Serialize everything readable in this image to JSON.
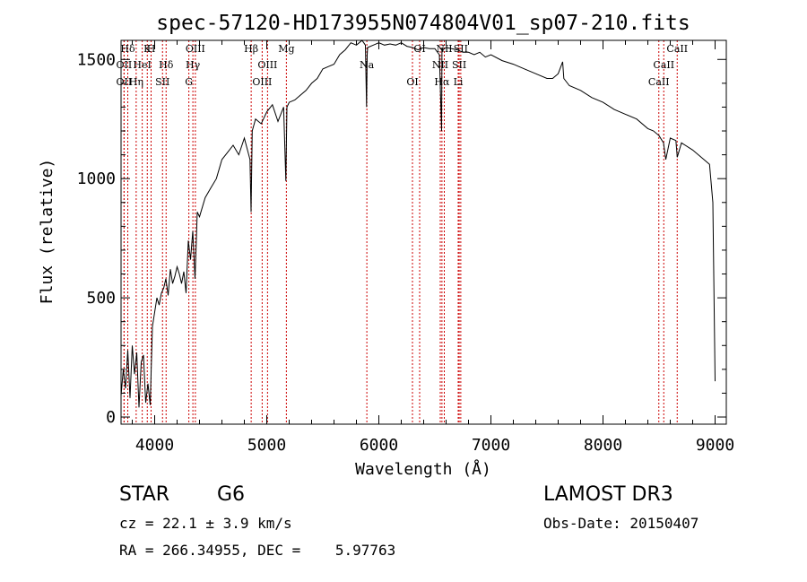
{
  "chart_data": {
    "type": "line",
    "title": "spec-57120-HD173955N074804V01_sp07-210.fits",
    "xlabel": "Wavelength (Å)",
    "ylabel": "Flux (relative)",
    "xlim": [
      3700,
      9100
    ],
    "ylim": [
      -30,
      1580
    ],
    "xticks": [
      4000,
      5000,
      6000,
      7000,
      8000,
      9000
    ],
    "yticks": [
      0,
      500,
      1000,
      1500
    ],
    "grid": false,
    "series": [
      {
        "name": "flux",
        "x": [
          3700,
          3720,
          3740,
          3760,
          3780,
          3800,
          3820,
          3840,
          3860,
          3880,
          3900,
          3920,
          3940,
          3960,
          3980,
          4000,
          4020,
          4040,
          4060,
          4080,
          4100,
          4120,
          4140,
          4160,
          4180,
          4200,
          4220,
          4240,
          4260,
          4280,
          4300,
          4320,
          4340,
          4360,
          4380,
          4400,
          4450,
          4500,
          4550,
          4600,
          4650,
          4700,
          4750,
          4800,
          4850,
          4860,
          4870,
          4900,
          4950,
          5000,
          5050,
          5100,
          5150,
          5170,
          5180,
          5200,
          5250,
          5300,
          5350,
          5400,
          5450,
          5500,
          5550,
          5600,
          5650,
          5700,
          5750,
          5800,
          5850,
          5880,
          5890,
          5896,
          5900,
          5950,
          6000,
          6050,
          6100,
          6150,
          6200,
          6250,
          6300,
          6350,
          6400,
          6450,
          6500,
          6540,
          6560,
          6563,
          6570,
          6600,
          6650,
          6700,
          6750,
          6800,
          6850,
          6900,
          6950,
          7000,
          7100,
          7200,
          7300,
          7400,
          7500,
          7550,
          7600,
          7640,
          7650,
          7700,
          7800,
          7900,
          8000,
          8100,
          8200,
          8300,
          8400,
          8450,
          8500,
          8540,
          8560,
          8600,
          8650,
          8662,
          8700,
          8800,
          8900,
          8950,
          8980,
          9000
        ],
        "y": [
          90,
          200,
          120,
          280,
          80,
          300,
          180,
          270,
          40,
          230,
          260,
          60,
          140,
          50,
          380,
          440,
          500,
          470,
          520,
          540,
          580,
          510,
          620,
          560,
          590,
          630,
          600,
          560,
          610,
          520,
          740,
          660,
          780,
          580,
          860,
          840,
          920,
          960,
          1000,
          1080,
          1110,
          1140,
          1100,
          1170,
          1080,
          860,
          1200,
          1250,
          1230,
          1280,
          1310,
          1240,
          1300,
          990,
          1300,
          1320,
          1330,
          1350,
          1370,
          1400,
          1420,
          1460,
          1470,
          1480,
          1520,
          1540,
          1570,
          1560,
          1580,
          1560,
          1300,
          1520,
          1550,
          1560,
          1570,
          1560,
          1565,
          1560,
          1570,
          1555,
          1550,
          1540,
          1550,
          1545,
          1545,
          1520,
          1200,
          1550,
          1540,
          1550,
          1545,
          1540,
          1530,
          1530,
          1520,
          1530,
          1510,
          1520,
          1495,
          1480,
          1460,
          1440,
          1420,
          1420,
          1440,
          1490,
          1420,
          1390,
          1370,
          1340,
          1320,
          1290,
          1270,
          1250,
          1210,
          1200,
          1180,
          1150,
          1080,
          1170,
          1160,
          1090,
          1150,
          1120,
          1080,
          1060,
          900,
          150
        ]
      }
    ],
    "annotations": [
      {
        "label": "Hδ",
        "x": 3760
      },
      {
        "label": "OII",
        "x": 3727
      },
      {
        "label": "OII",
        "x": 3727
      },
      {
        "label": "K",
        "x": 3934
      },
      {
        "label": "HeI",
        "x": 3889
      },
      {
        "label": "Hη",
        "x": 3835
      },
      {
        "label": "H",
        "x": 3968
      },
      {
        "label": "Hδ",
        "x": 4102
      },
      {
        "label": "SII",
        "x": 4070
      },
      {
        "label": "OIII",
        "x": 4363
      },
      {
        "label": "Hγ",
        "x": 4341
      },
      {
        "label": "G",
        "x": 4305
      },
      {
        "label": "Hβ",
        "x": 4861
      },
      {
        "label": "OIII",
        "x": 5007
      },
      {
        "label": "OIII",
        "x": 4959
      },
      {
        "label": "Mg",
        "x": 5175
      },
      {
        "label": "Na",
        "x": 5893
      },
      {
        "label": "OI",
        "x": 6300
      },
      {
        "label": "OI",
        "x": 6364
      },
      {
        "label": "NII",
        "x": 6548
      },
      {
        "label": "Hα",
        "x": 6563
      },
      {
        "label": "NII",
        "x": 6584
      },
      {
        "label": "SII",
        "x": 6717
      },
      {
        "label": "Li",
        "x": 6708
      },
      {
        "label": "SII",
        "x": 6731
      },
      {
        "label": "CaII",
        "x": 8542
      },
      {
        "label": "CaII",
        "x": 8498
      },
      {
        "label": "CaII",
        "x": 8662
      }
    ]
  },
  "info": {
    "object_class": "STAR",
    "subclass": "G6",
    "survey": "LAMOST DR3",
    "redshift": "cz = 22.1 ± 3.9 km/s",
    "obs_date": "Obs-Date: 20150407",
    "coords": "RA = 266.34955, DEC =    5.97763"
  },
  "colors": {
    "line": "#000000",
    "marker": "#cc0000",
    "axis": "#000000"
  }
}
